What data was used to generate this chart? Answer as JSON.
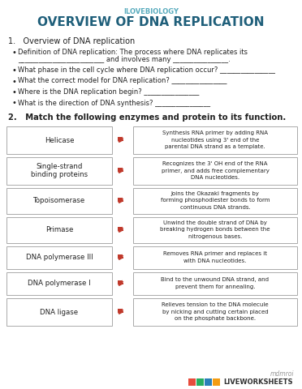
{
  "subtitle": "ILOVEBIOLOGY",
  "title": "OVERVIEW OF DNA REPLICATION",
  "subtitle_color": "#5aacbe",
  "title_color": "#1f5f7a",
  "bg_color": "#ffffff",
  "section1_header": "1.   Overview of DNA replication",
  "bullets": [
    "Definition of DNA replication: The process where DNA replicates its\n_________________________ and involves many ________________.",
    "What phase in the cell cycle where DNA replication occur? ________________",
    "What the correct model for DNA replication? ________________",
    "Where is the DNA replication begin? ________________",
    "What is the direction of DNA synthesis? ________________"
  ],
  "section2_header": "2.   Match the following enzymes and protein to its function.",
  "enzymes": [
    "Helicase",
    "Single-strand\nbinding proteins",
    "Topoisomerase",
    "Primase",
    "DNA polymerase III",
    "DNA polymerase I",
    "DNA ligase"
  ],
  "functions": [
    "Synthesis RNA primer by adding RNA\nnucleotides using 3' end of the\nparental DNA strand as a template.",
    "Recognizes the 3' OH end of the RNA\nprimer, and adds free complementary\nDNA nucleotides.",
    "Joins the Okazaki fragments by\nforming phosphodiester bonds to form\ncontinuous DNA strands.",
    "Unwind the double strand of DNA by\nbreaking hydrogen bonds between the\nnitrogenous bases.",
    "Removes RNA primer and replaces it\nwith DNA nucleotides.",
    "Bind to the unwound DNA strand, and\nprevent them for annealing.",
    "Relieves tension to the DNA molecule\nby nicking and cutting certain placed\non the phosphate backbone."
  ],
  "box_color": "#ffffff",
  "box_border": "#aaaaaa",
  "text_color": "#222222",
  "pin_color": "#c0392b",
  "footer_text": "mdmroi",
  "footer_color": "#999999",
  "liveworksheets_colors": [
    "#e74c3c",
    "#27ae60",
    "#2980b9",
    "#f39c12"
  ],
  "lw_text_color": "#333333"
}
